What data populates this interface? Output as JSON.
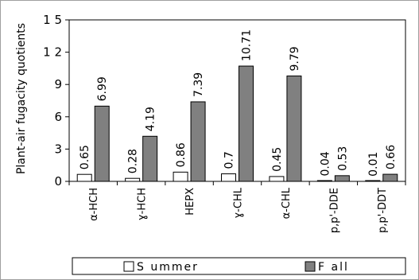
{
  "chart_data": {
    "type": "bar",
    "title": "",
    "xlabel": "",
    "ylabel": "Plant-air fugacity quotients",
    "ylim": [
      0,
      15
    ],
    "yticks": [
      0,
      3,
      6,
      9,
      12,
      15
    ],
    "ytick_labels": [
      "0",
      "3",
      "6",
      "9",
      "1 2",
      "1 5"
    ],
    "grid": false,
    "legend_position": "bottom",
    "categories": [
      "α-HCH",
      "ɣ-HCH",
      "HEPX",
      "ɣ-CHL",
      "α-CHL",
      "p,p'-DDE",
      "p,p'-DDT"
    ],
    "series": [
      {
        "name": "Summer",
        "color": "#ffffff",
        "values": [
          0.65,
          0.28,
          0.86,
          0.7,
          0.45,
          0.04,
          0.01
        ],
        "labels": [
          "0.65",
          "0.28",
          "0.86",
          "0.7",
          "0.45",
          "0.04",
          "0.01"
        ]
      },
      {
        "name": "Fall",
        "color": "#808080",
        "values": [
          6.99,
          4.19,
          7.39,
          10.71,
          9.79,
          0.53,
          0.66
        ],
        "labels": [
          "6.99",
          "4.19",
          "7.39",
          "10.71",
          "9.79",
          "0.53",
          "0.66"
        ]
      }
    ],
    "legend": [
      "S ummer",
      "F all"
    ]
  }
}
